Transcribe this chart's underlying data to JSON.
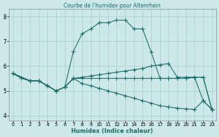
{
  "title": "Courbe de l'humidex pour Altenrhein",
  "xlabel": "Humidex (Indice chaleur)",
  "bg_color": "#cce8e8",
  "grid_color": "#aacccc",
  "line_color": "#1e6b6b",
  "xlim": [
    -0.5,
    23.5
  ],
  "ylim": [
    3.8,
    8.3
  ],
  "yticks": [
    4,
    5,
    6,
    7,
    8
  ],
  "xticks": [
    0,
    1,
    2,
    3,
    4,
    5,
    6,
    7,
    8,
    9,
    10,
    11,
    12,
    13,
    14,
    15,
    16,
    17,
    18,
    19,
    20,
    21,
    22,
    23
  ],
  "lines": [
    {
      "x": [
        0,
        1,
        2,
        3,
        4,
        5,
        6,
        7,
        8,
        9,
        10,
        11,
        12,
        13,
        14,
        15,
        16,
        17,
        18,
        19,
        20,
        21,
        22,
        23
      ],
      "y": [
        5.7,
        5.5,
        5.4,
        5.4,
        5.2,
        5.0,
        5.15,
        6.6,
        7.3,
        7.5,
        7.75,
        7.75,
        7.85,
        7.85,
        7.5,
        7.5,
        6.55,
        5.5,
        5.5,
        5.5,
        5.5,
        5.55,
        4.6,
        4.25
      ]
    },
    {
      "x": [
        0,
        2,
        3,
        4,
        5,
        6,
        7,
        8,
        9,
        10,
        11,
        12,
        13,
        14,
        15,
        16,
        17,
        18,
        19,
        20,
        21,
        22,
        23
      ],
      "y": [
        5.7,
        5.4,
        5.4,
        5.2,
        5.0,
        5.15,
        5.5,
        5.55,
        5.6,
        5.65,
        5.7,
        5.75,
        5.8,
        5.85,
        5.9,
        6.0,
        6.05,
        6.1,
        5.55,
        5.55,
        5.55,
        5.55,
        4.25
      ]
    },
    {
      "x": [
        0,
        2,
        3,
        4,
        5,
        6,
        7,
        8,
        9,
        10,
        11,
        12,
        13,
        14,
        15,
        16,
        17,
        18,
        19,
        20,
        21,
        22,
        23
      ],
      "y": [
        5.7,
        5.4,
        5.4,
        5.2,
        5.0,
        5.15,
        5.5,
        5.5,
        5.5,
        5.5,
        5.5,
        5.5,
        5.5,
        5.5,
        5.5,
        5.5,
        5.5,
        5.5,
        5.5,
        5.5,
        5.55,
        5.55,
        4.25
      ]
    },
    {
      "x": [
        0,
        2,
        3,
        4,
        5,
        6,
        7,
        8,
        9,
        10,
        11,
        12,
        13,
        14,
        15,
        16,
        17,
        18,
        19,
        20,
        21,
        22,
        23
      ],
      "y": [
        5.7,
        5.4,
        5.4,
        5.2,
        5.0,
        5.15,
        5.5,
        5.3,
        5.2,
        5.1,
        5.0,
        4.9,
        4.8,
        4.7,
        4.6,
        4.5,
        4.4,
        4.35,
        4.3,
        4.27,
        4.25,
        4.6,
        4.25
      ]
    }
  ]
}
